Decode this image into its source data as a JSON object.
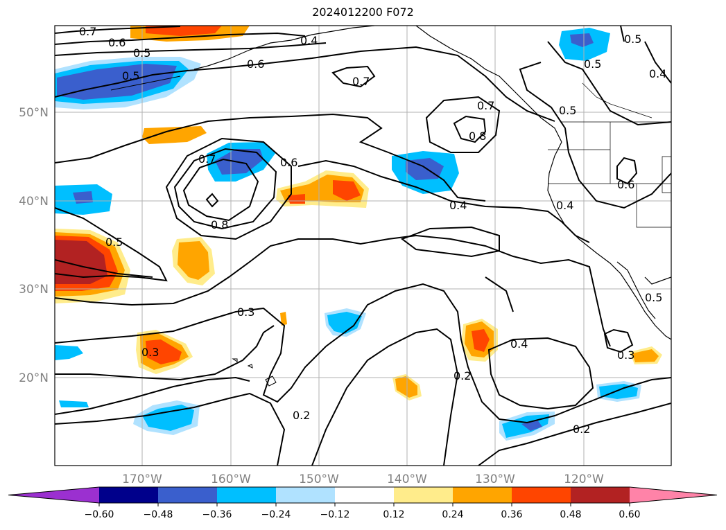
{
  "title": "2024012200 F072",
  "map": {
    "lat_ticks": [
      "50°N",
      "40°N",
      "30°N",
      "20°N"
    ],
    "lon_ticks": [
      "170°W",
      "160°W",
      "150°W",
      "140°W",
      "130°W",
      "120°W"
    ]
  },
  "colorbar": {
    "tick_labels": [
      "−0.60",
      "−0.48",
      "−0.36",
      "−0.24",
      "−0.12",
      "0.12",
      "0.24",
      "0.36",
      "0.48",
      "0.60"
    ],
    "colors": [
      "#9b30d0",
      "#00008b",
      "#3a5fcd",
      "#00bfff",
      "#b0e2ff",
      "#ffffff",
      "#ffec8b",
      "#ffa500",
      "#ff4500",
      "#b22222",
      "#ff83a8"
    ]
  },
  "contour_labels": [
    "0.7",
    "0.6",
    "0.5",
    "0.5",
    "0.4",
    "0.6",
    "0.7",
    "0.7",
    "0.8",
    "0.5",
    "0.5",
    "0.4",
    "0.5",
    "0.7",
    "0.6",
    "0.8",
    "0.4",
    "0.6",
    "0.4",
    "0.5",
    "0.3",
    "0.3",
    "0.2",
    "0.2",
    "0.4",
    "0.3",
    "0.2",
    "0.5"
  ]
}
